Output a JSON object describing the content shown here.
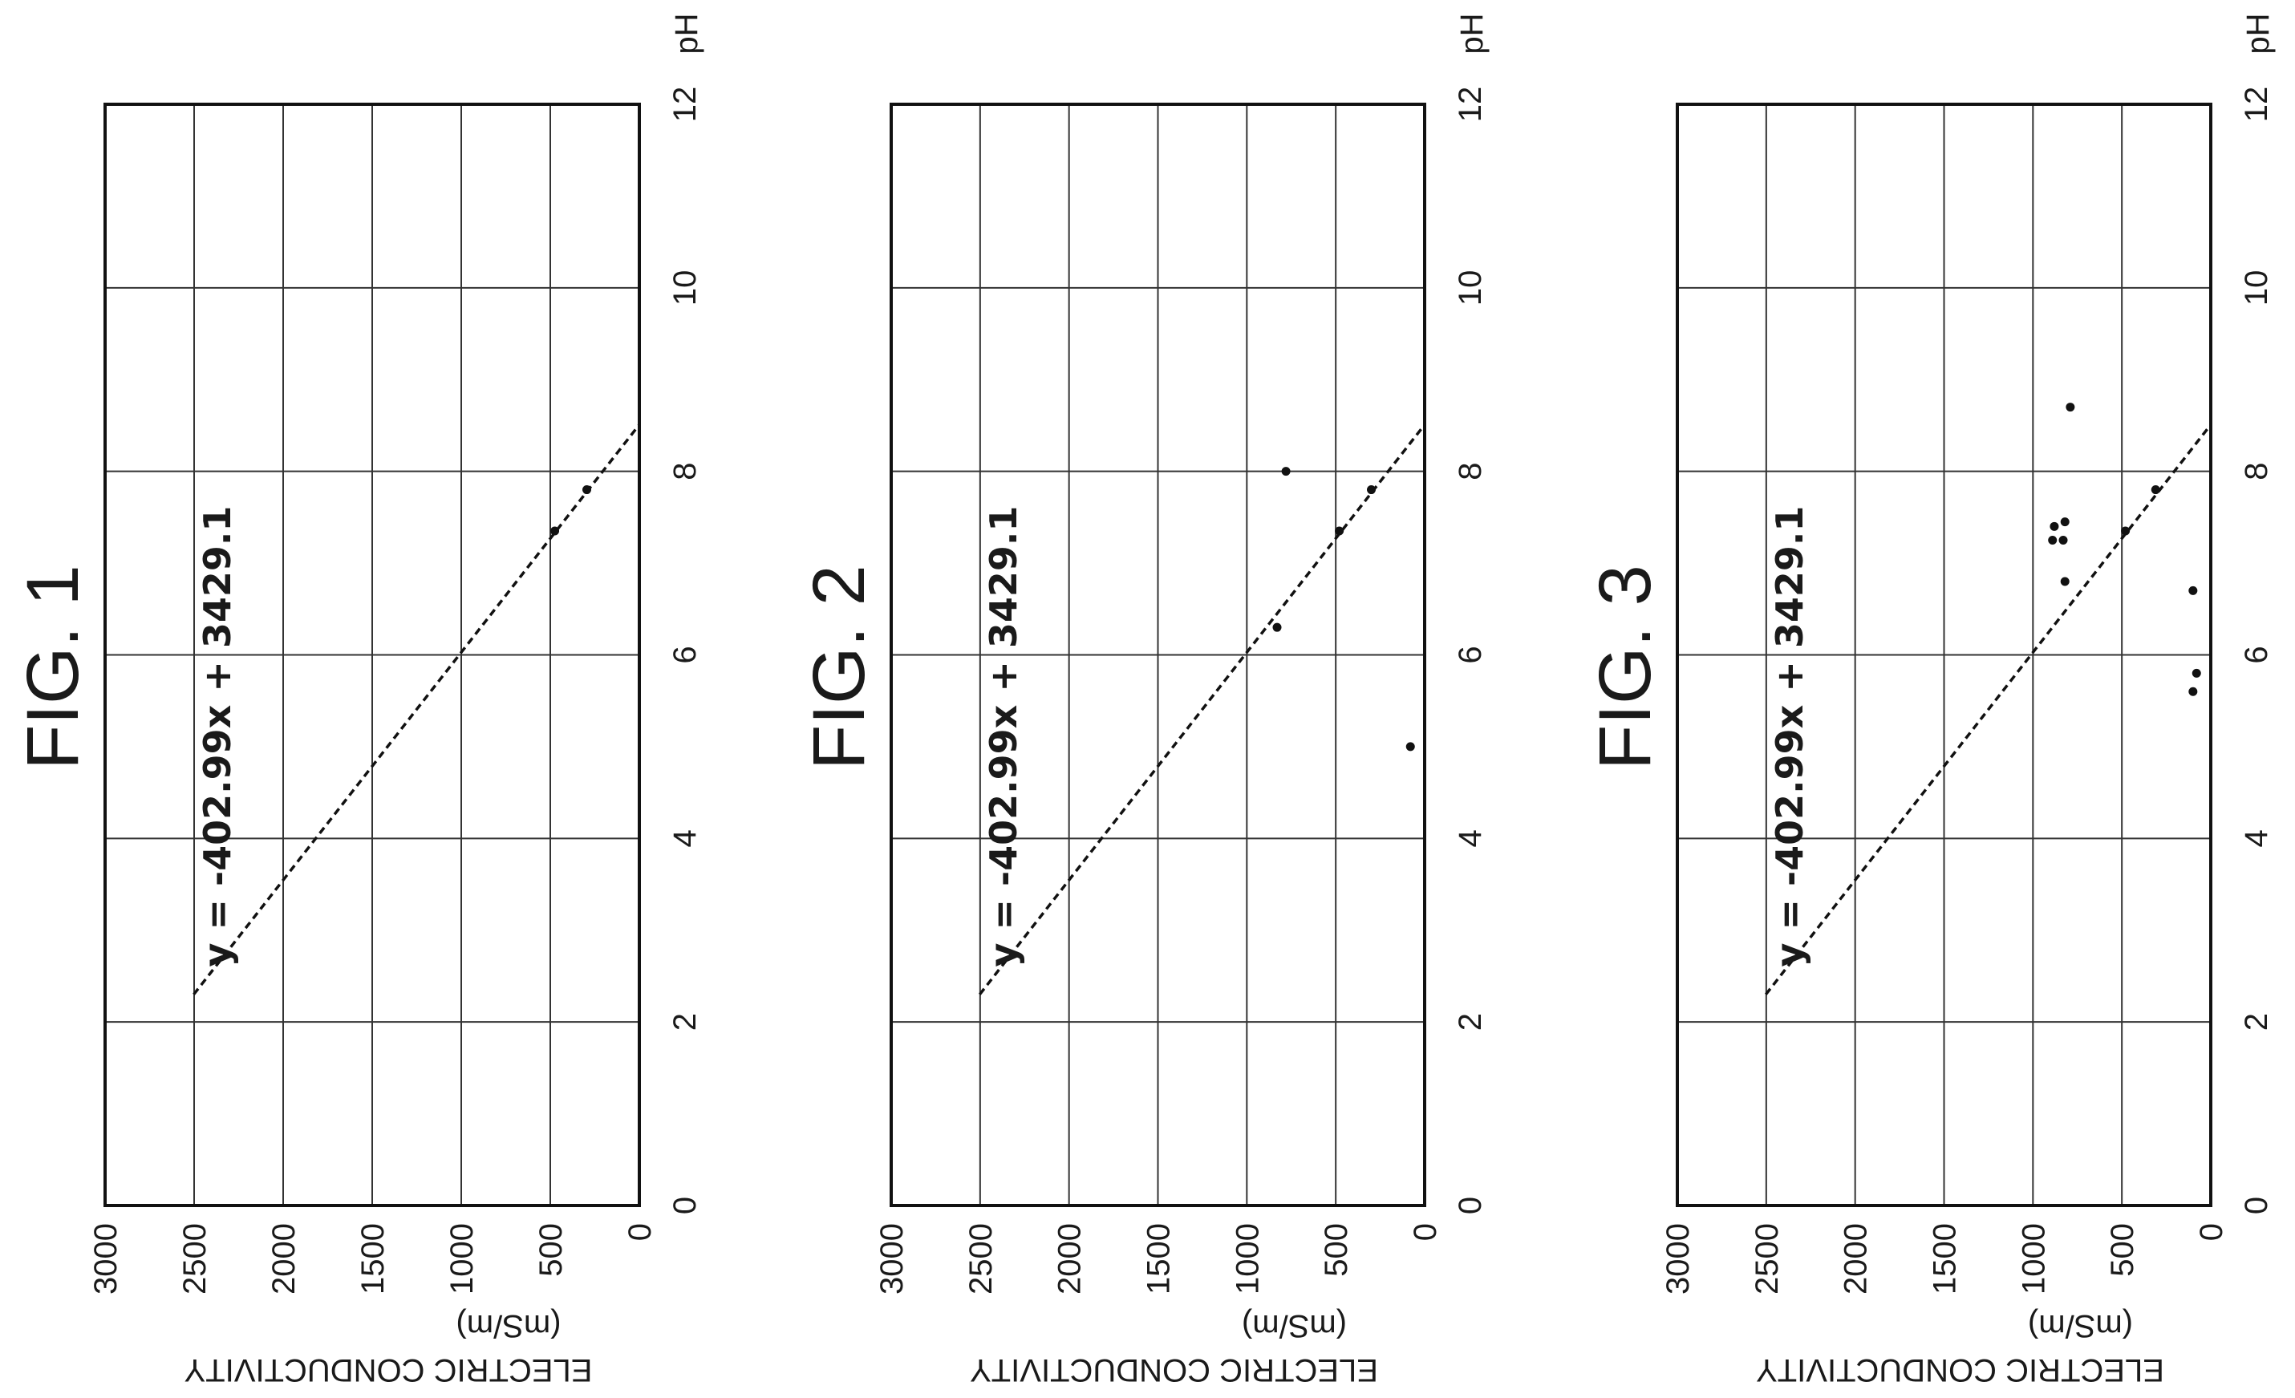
{
  "chart_data": [
    {
      "type": "scatter",
      "title": "FIG. 1",
      "xlabel": "pH",
      "ylabel": "ELECTRIC CONDUCTIVITY (mS/m)",
      "xlim": [
        0,
        12
      ],
      "ylim": [
        0,
        3000
      ],
      "x_ticks": [
        "0",
        "2",
        "4",
        "6",
        "8",
        "10",
        "12"
      ],
      "y_ticks": [
        "0",
        "500",
        "1000",
        "1500",
        "2000",
        "2500",
        "3000"
      ],
      "grid": true,
      "trendline": {
        "equation": "y = -402.99x + 3429.1",
        "slope": -402.99,
        "intercept": 3429.1,
        "x_range": [
          2.3,
          8.5
        ]
      },
      "points": [
        {
          "x": 7.35,
          "y": 475
        },
        {
          "x": 7.8,
          "y": 295
        }
      ]
    },
    {
      "type": "scatter",
      "title": "FIG. 2",
      "xlabel": "pH",
      "ylabel": "ELECTRIC CONDUCTIVITY (mS/m)",
      "xlim": [
        0,
        12
      ],
      "ylim": [
        0,
        3000
      ],
      "x_ticks": [
        "0",
        "2",
        "4",
        "6",
        "8",
        "10",
        "12"
      ],
      "y_ticks": [
        "0",
        "500",
        "1000",
        "1500",
        "2000",
        "2500",
        "3000"
      ],
      "grid": true,
      "trendline": {
        "equation": "y = -402.99x + 3429.1",
        "slope": -402.99,
        "intercept": 3429.1,
        "x_range": [
          2.3,
          8.5
        ]
      },
      "points": [
        {
          "x": 8.0,
          "y": 780
        },
        {
          "x": 6.3,
          "y": 830
        },
        {
          "x": 7.35,
          "y": 480
        },
        {
          "x": 7.8,
          "y": 300
        },
        {
          "x": 5.0,
          "y": 80
        }
      ]
    },
    {
      "type": "scatter",
      "title": "FIG. 3",
      "xlabel": "pH",
      "ylabel": "ELECTRIC CONDUCTIVITY (mS/m)",
      "xlim": [
        0,
        12
      ],
      "ylim": [
        0,
        3000
      ],
      "x_ticks": [
        "0",
        "2",
        "4",
        "6",
        "8",
        "10",
        "12"
      ],
      "y_ticks": [
        "0",
        "500",
        "1000",
        "1500",
        "2000",
        "2500",
        "3000"
      ],
      "grid": true,
      "trendline": {
        "equation": "y = -402.99x + 3429.1",
        "slope": -402.99,
        "intercept": 3429.1,
        "x_range": [
          2.3,
          8.5
        ]
      },
      "points": [
        {
          "x": 8.7,
          "y": 790
        },
        {
          "x": 7.45,
          "y": 820
        },
        {
          "x": 7.4,
          "y": 880
        },
        {
          "x": 7.25,
          "y": 830
        },
        {
          "x": 7.25,
          "y": 890
        },
        {
          "x": 6.8,
          "y": 820
        },
        {
          "x": 7.35,
          "y": 480
        },
        {
          "x": 7.8,
          "y": 310
        },
        {
          "x": 6.7,
          "y": 100
        },
        {
          "x": 5.8,
          "y": 80
        },
        {
          "x": 5.6,
          "y": 100
        }
      ]
    }
  ]
}
